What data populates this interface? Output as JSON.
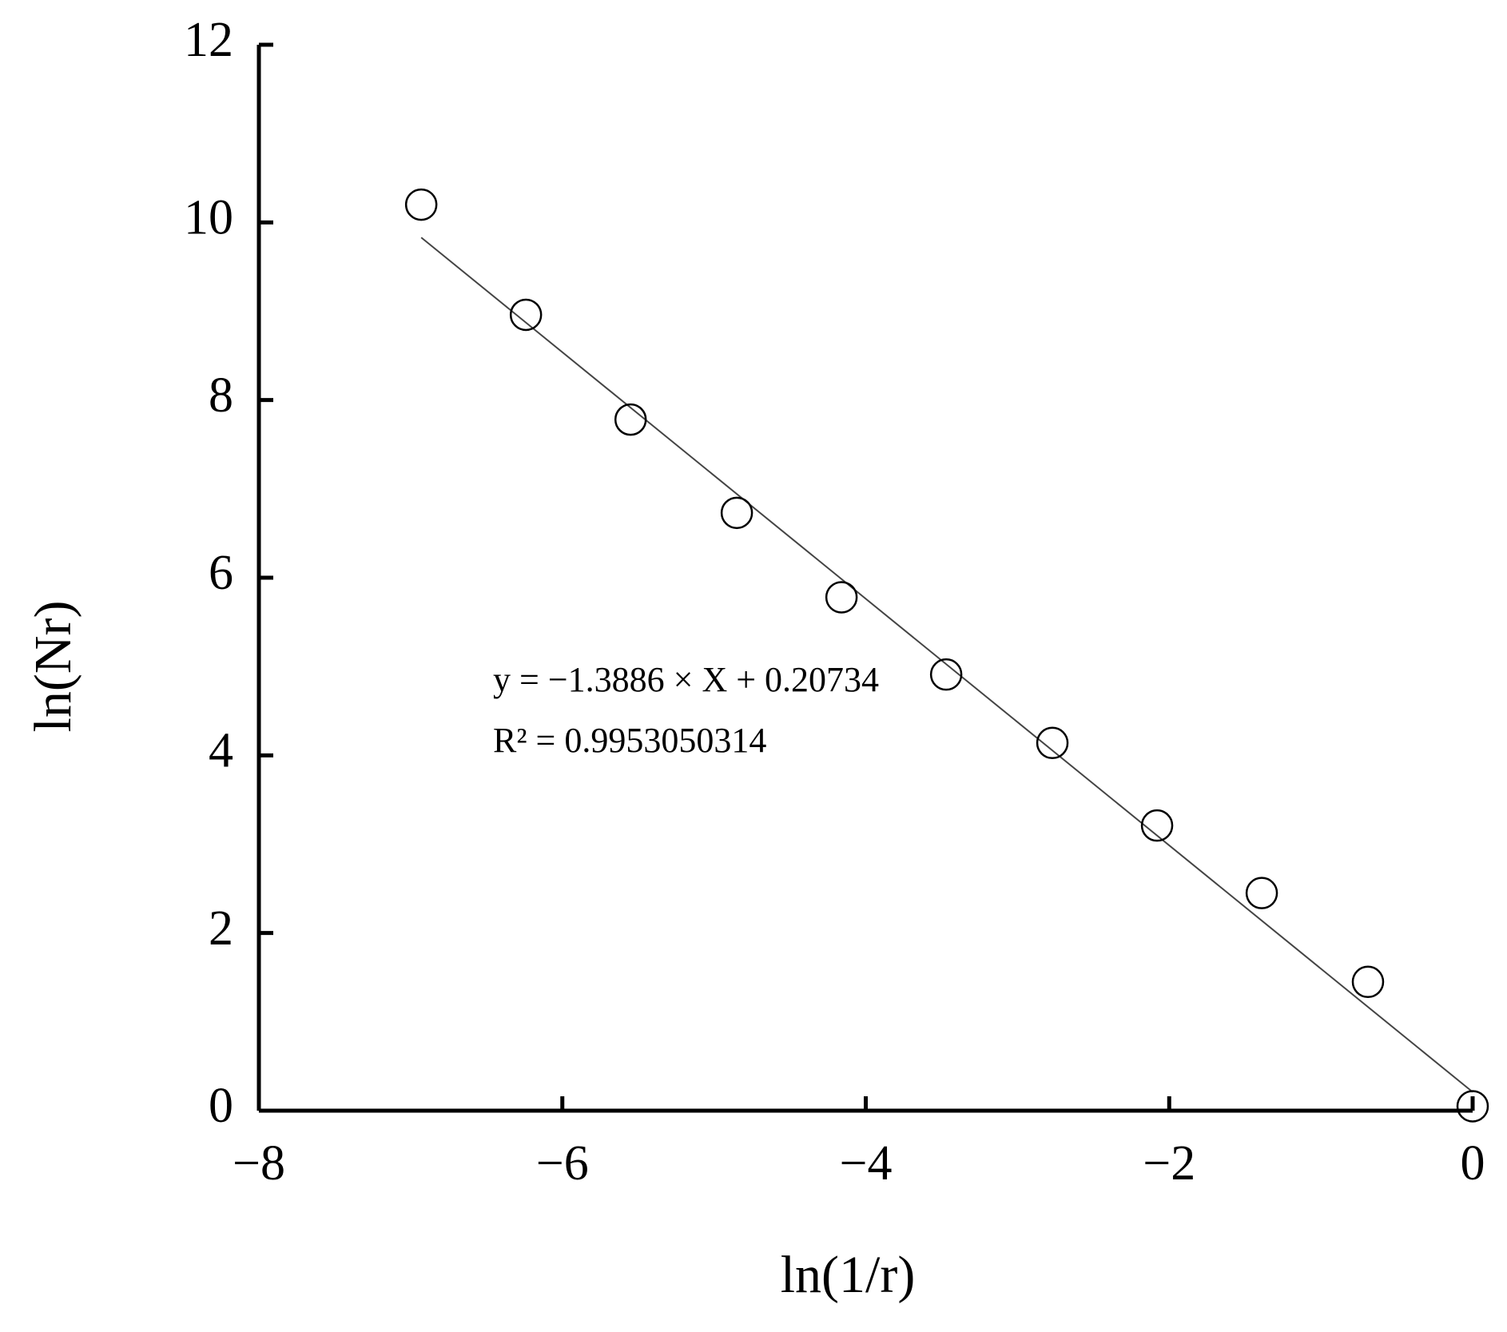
{
  "chart_data": {
    "type": "scatter",
    "x_label": "ln(1/r)",
    "y_label": "ln(Nr)",
    "annotations": [
      "y = −1.3886 × X + 0.20734",
      "R² = 0.9953050314"
    ],
    "x": [
      -6.93,
      -6.24,
      -5.55,
      -4.85,
      -4.16,
      -3.47,
      -2.77,
      -2.08,
      -1.39,
      -0.69,
      0
    ],
    "values": [
      10.2,
      8.96,
      7.78,
      6.73,
      5.78,
      4.91,
      4.14,
      3.21,
      2.45,
      1.45,
      0.05
    ],
    "color": "#000000",
    "trend_line": {
      "x": [
        -6.93,
        0
      ],
      "values": [
        9.83,
        0.21
      ],
      "color": "#444444"
    },
    "xlim": [
      -8,
      0
    ],
    "xticks": [
      {
        "value": -8,
        "label": "−8"
      },
      {
        "value": -6,
        "label": "−6"
      },
      {
        "value": -4,
        "label": "−4"
      },
      {
        "value": -2,
        "label": "−2"
      },
      0
    ],
    "ylim": [
      0,
      12
    ],
    "yticks": [
      0,
      2,
      4,
      6,
      8,
      10,
      12
    ],
    "grid": false
  }
}
